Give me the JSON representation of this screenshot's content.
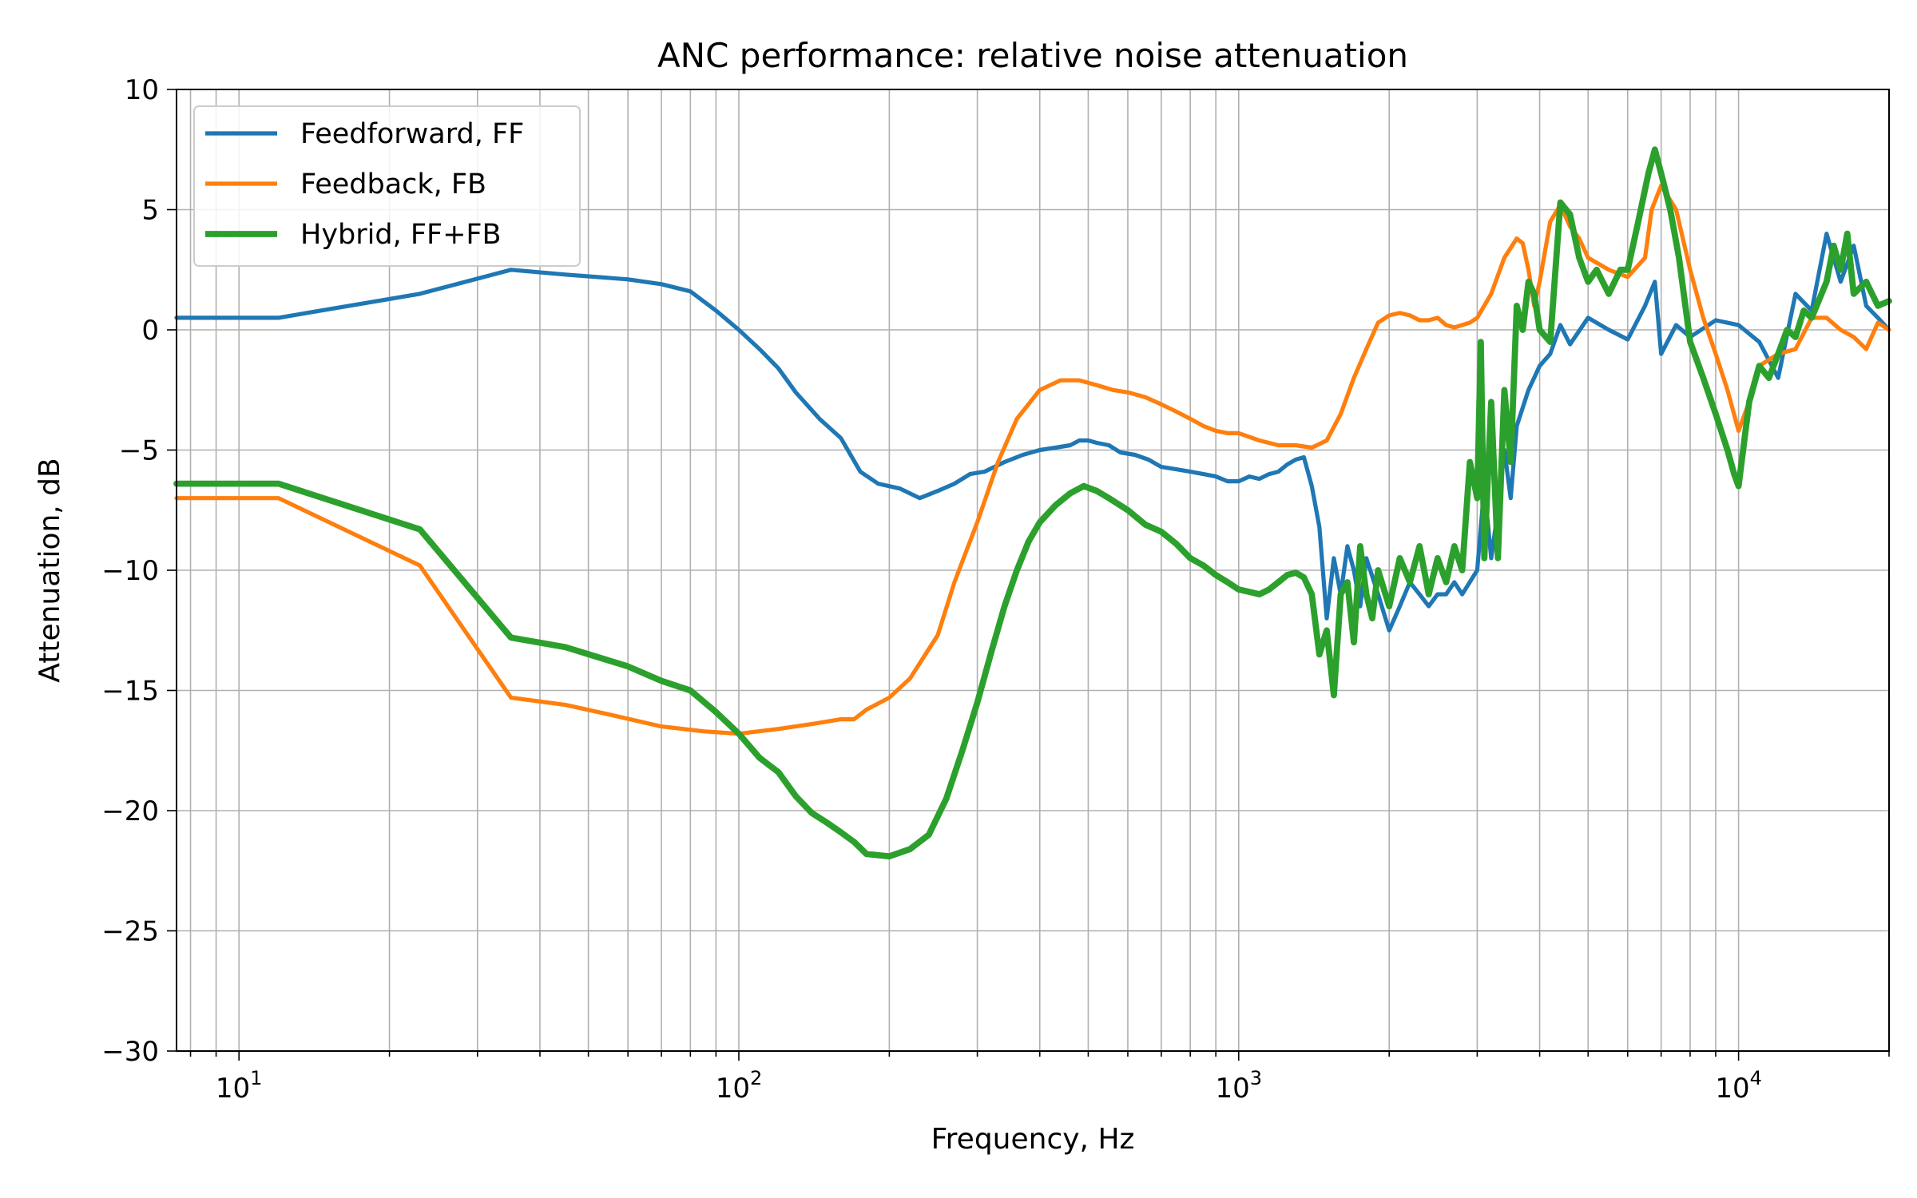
{
  "chart_data": {
    "type": "line",
    "title": "ANC performance: relative noise attenuation",
    "xlabel": "Frequency, Hz",
    "ylabel": "Attenuation, dB",
    "xscale": "log",
    "xlim": [
      7.5,
      20000
    ],
    "ylim": [
      -30,
      10
    ],
    "grid": true,
    "grid_minor_x": true,
    "legend_placement": "top-left",
    "x_tick_labels": [
      {
        "value": 10,
        "base": "10",
        "exp": "1"
      },
      {
        "value": 100,
        "base": "10",
        "exp": "2"
      },
      {
        "value": 1000,
        "base": "10",
        "exp": "3"
      },
      {
        "value": 10000,
        "base": "10",
        "exp": "4"
      }
    ],
    "y_ticks": [
      10,
      5,
      0,
      -5,
      -10,
      -15,
      -20,
      -25,
      -30
    ],
    "y_tick_labels": [
      "10",
      "5",
      "0",
      "−5",
      "−10",
      "−15",
      "−20",
      "−25",
      "−30"
    ],
    "series": [
      {
        "name": "Feedforward, FF",
        "color": "#1f77b4",
        "width": 2,
        "x": [
          7.5,
          12,
          23,
          35,
          45,
          60,
          70,
          80,
          90,
          100,
          110,
          120,
          130,
          145,
          160,
          175,
          190,
          210,
          230,
          250,
          270,
          290,
          310,
          340,
          370,
          400,
          430,
          460,
          480,
          500,
          520,
          550,
          580,
          620,
          660,
          700,
          750,
          800,
          850,
          900,
          950,
          1000,
          1050,
          1100,
          1150,
          1200,
          1250,
          1300,
          1350,
          1400,
          1450,
          1500,
          1550,
          1600,
          1650,
          1700,
          1750,
          1800,
          1900,
          2000,
          2100,
          2200,
          2300,
          2400,
          2500,
          2600,
          2700,
          2800,
          3000,
          3100,
          3200,
          3300,
          3400,
          3500,
          3600,
          3800,
          4000,
          4200,
          4400,
          4600,
          5000,
          5500,
          6000,
          6500,
          6800,
          7000,
          7500,
          8000,
          9000,
          10000,
          11000,
          12000,
          13000,
          14000,
          15000,
          16000,
          17000,
          18000,
          19000,
          20000
        ],
        "y": [
          0.5,
          0.5,
          1.5,
          2.5,
          2.3,
          2.1,
          1.9,
          1.6,
          0.8,
          0,
          -0.8,
          -1.6,
          -2.6,
          -3.7,
          -4.5,
          -5.9,
          -6.4,
          -6.6,
          -7.0,
          -6.7,
          -6.4,
          -6.0,
          -5.9,
          -5.5,
          -5.2,
          -5.0,
          -4.9,
          -4.8,
          -4.6,
          -4.6,
          -4.7,
          -4.8,
          -5.1,
          -5.2,
          -5.4,
          -5.7,
          -5.8,
          -5.9,
          -6.0,
          -6.1,
          -6.3,
          -6.3,
          -6.1,
          -6.2,
          -6.0,
          -5.9,
          -5.6,
          -5.4,
          -5.3,
          -6.5,
          -8.2,
          -12.0,
          -9.5,
          -11.0,
          -9.0,
          -10.0,
          -11.5,
          -9.5,
          -11.0,
          -12.5,
          -11.5,
          -10.5,
          -11.0,
          -11.5,
          -11.0,
          -11.0,
          -10.5,
          -11.0,
          -10.0,
          -6.5,
          -9.5,
          -7.5,
          -5.0,
          -7.0,
          -4.0,
          -2.5,
          -1.5,
          -1.0,
          0.2,
          -0.6,
          0.5,
          0.0,
          -0.4,
          1.0,
          2.0,
          -1.0,
          0.2,
          -0.3,
          0.4,
          0.2,
          -0.5,
          -2.0,
          1.5,
          0.8,
          4.0,
          2.0,
          3.5,
          1.0,
          0.5,
          0.0
        ]
      },
      {
        "name": "Feedback, FB",
        "color": "#ff7f0e",
        "width": 2,
        "x": [
          7.5,
          12,
          23,
          35,
          45,
          55,
          70,
          85,
          100,
          120,
          140,
          160,
          170,
          180,
          200,
          220,
          250,
          270,
          300,
          330,
          360,
          400,
          440,
          480,
          520,
          560,
          600,
          650,
          700,
          750,
          800,
          850,
          900,
          950,
          1000,
          1100,
          1200,
          1300,
          1400,
          1500,
          1600,
          1700,
          1800,
          1900,
          2000,
          2100,
          2200,
          2300,
          2400,
          2500,
          2600,
          2700,
          2800,
          2900,
          3000,
          3200,
          3400,
          3600,
          3700,
          3800,
          3900,
          4000,
          4200,
          4400,
          4600,
          4800,
          5000,
          5500,
          6000,
          6500,
          6700,
          7000,
          7500,
          8000,
          8500,
          9000,
          9500,
          10000,
          10500,
          11000,
          12000,
          13000,
          14000,
          15000,
          16000,
          17000,
          18000,
          19000,
          20000
        ],
        "y": [
          -7.0,
          -7.0,
          -9.8,
          -15.3,
          -15.6,
          -16.0,
          -16.5,
          -16.7,
          -16.8,
          -16.6,
          -16.4,
          -16.2,
          -16.2,
          -15.8,
          -15.3,
          -14.5,
          -12.7,
          -10.5,
          -8.0,
          -5.5,
          -3.7,
          -2.5,
          -2.1,
          -2.1,
          -2.3,
          -2.5,
          -2.6,
          -2.8,
          -3.1,
          -3.4,
          -3.7,
          -4.0,
          -4.2,
          -4.3,
          -4.3,
          -4.6,
          -4.8,
          -4.8,
          -4.9,
          -4.6,
          -3.5,
          -2.0,
          -0.8,
          0.3,
          0.6,
          0.7,
          0.6,
          0.4,
          0.4,
          0.5,
          0.2,
          0.1,
          0.2,
          0.3,
          0.5,
          1.5,
          3.0,
          3.8,
          3.6,
          2.5,
          1.0,
          2.0,
          4.5,
          5.2,
          4.3,
          3.8,
          3.0,
          2.5,
          2.2,
          3.0,
          5.0,
          6.0,
          5.0,
          2.5,
          0.5,
          -1.0,
          -2.5,
          -4.2,
          -3.0,
          -1.5,
          -1.0,
          -0.8,
          0.5,
          0.5,
          0.0,
          -0.3,
          -0.8,
          0.3,
          0.0
        ]
      },
      {
        "name": "Hybrid, FF+FB",
        "color": "#2ca02c",
        "width": 3,
        "x": [
          7.5,
          12,
          23,
          35,
          45,
          60,
          70,
          80,
          90,
          100,
          110,
          120,
          130,
          140,
          150,
          160,
          170,
          180,
          200,
          220,
          240,
          260,
          280,
          300,
          320,
          340,
          360,
          380,
          400,
          430,
          460,
          490,
          520,
          550,
          600,
          650,
          700,
          750,
          800,
          850,
          900,
          950,
          1000,
          1050,
          1100,
          1150,
          1200,
          1250,
          1300,
          1350,
          1400,
          1450,
          1500,
          1550,
          1600,
          1650,
          1700,
          1750,
          1800,
          1850,
          1900,
          2000,
          2100,
          2200,
          2300,
          2400,
          2500,
          2600,
          2700,
          2800,
          2900,
          3000,
          3050,
          3100,
          3200,
          3300,
          3400,
          3500,
          3600,
          3700,
          3800,
          3900,
          4000,
          4200,
          4400,
          4600,
          4800,
          5000,
          5200,
          5500,
          5800,
          6000,
          6300,
          6600,
          6800,
          7000,
          7300,
          7600,
          8000,
          8500,
          9000,
          9500,
          9800,
          10000,
          10500,
          11000,
          11500,
          12000,
          12500,
          13000,
          13500,
          14000,
          15000,
          15500,
          16000,
          16500,
          17000,
          18000,
          19000,
          20000
        ],
        "y": [
          -6.4,
          -6.4,
          -8.3,
          -12.8,
          -13.2,
          -14.0,
          -14.6,
          -15.0,
          -15.9,
          -16.8,
          -17.8,
          -18.4,
          -19.4,
          -20.1,
          -20.5,
          -20.9,
          -21.3,
          -21.8,
          -21.9,
          -21.6,
          -21.0,
          -19.5,
          -17.5,
          -15.5,
          -13.4,
          -11.5,
          -10.0,
          -8.8,
          -8.0,
          -7.3,
          -6.8,
          -6.5,
          -6.7,
          -7.0,
          -7.5,
          -8.1,
          -8.4,
          -8.9,
          -9.5,
          -9.8,
          -10.2,
          -10.5,
          -10.8,
          -10.9,
          -11.0,
          -10.8,
          -10.5,
          -10.2,
          -10.1,
          -10.3,
          -11.0,
          -13.5,
          -12.5,
          -15.2,
          -11.0,
          -10.5,
          -13.0,
          -9.0,
          -11.0,
          -12.0,
          -10.0,
          -11.5,
          -9.5,
          -10.5,
          -9.0,
          -11.0,
          -9.5,
          -10.5,
          -9.0,
          -10.0,
          -5.5,
          -7.0,
          -0.5,
          -9.5,
          -3.0,
          -9.5,
          -2.5,
          -5.5,
          1.0,
          0.0,
          2.0,
          1.5,
          0.0,
          -0.5,
          5.3,
          4.8,
          3.0,
          2.0,
          2.5,
          1.5,
          2.5,
          2.5,
          4.5,
          6.5,
          7.5,
          6.5,
          5.0,
          3.0,
          -0.5,
          -2.0,
          -3.5,
          -5.0,
          -6.0,
          -6.5,
          -3.0,
          -1.5,
          -2.0,
          -1.0,
          0.0,
          -0.3,
          0.8,
          0.5,
          2.0,
          3.5,
          2.5,
          4.0,
          1.5,
          2.0,
          1.0,
          1.2
        ]
      }
    ]
  }
}
